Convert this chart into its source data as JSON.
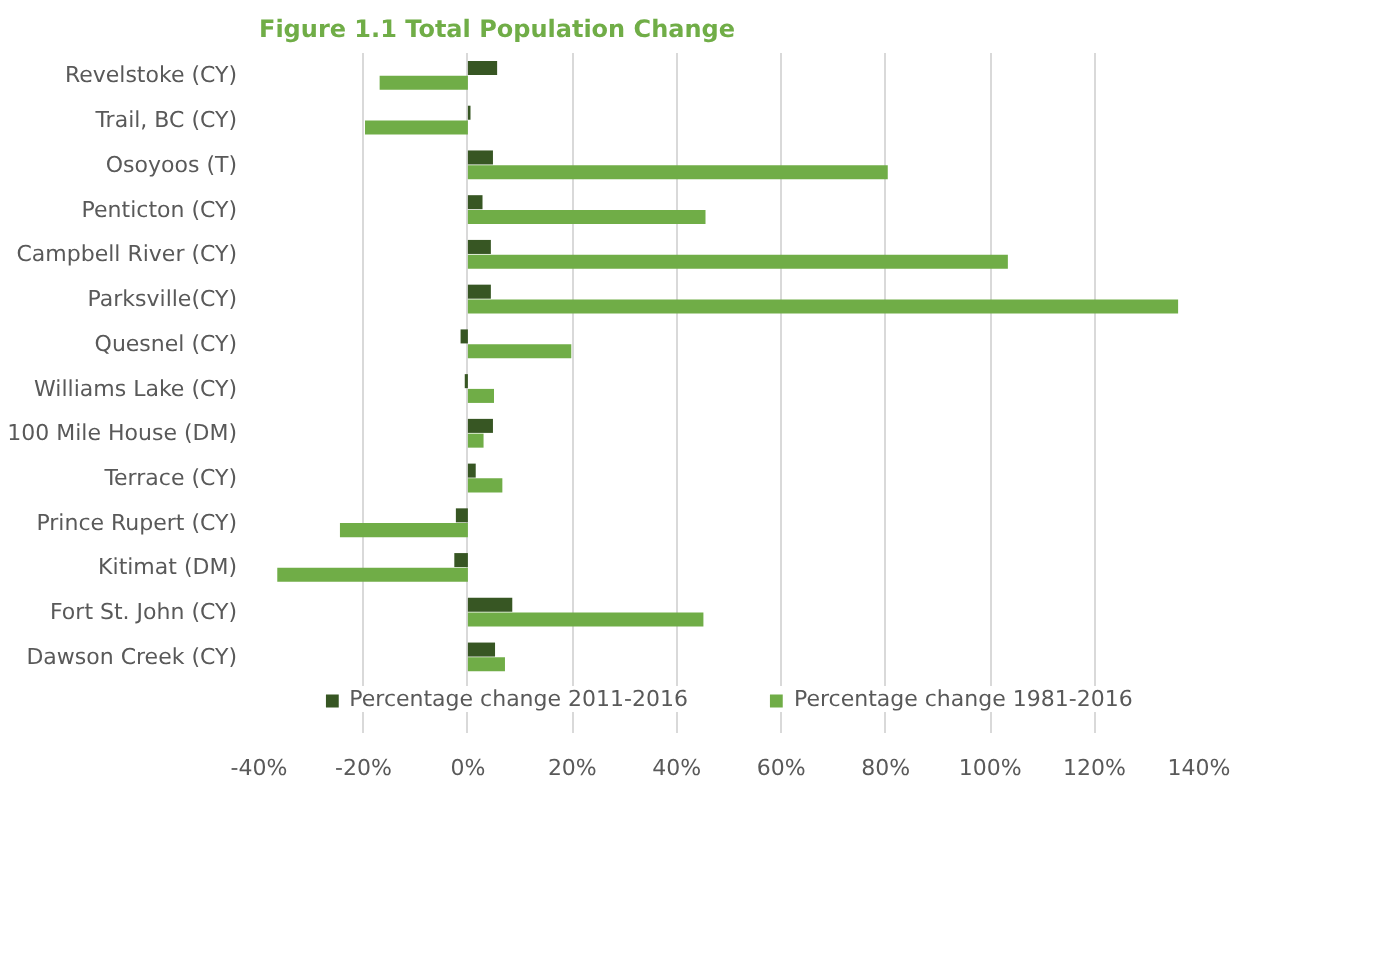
{
  "chart_data": {
    "type": "bar",
    "orientation": "horizontal",
    "title": "Figure 1.1 Total Population Change",
    "categories": [
      "Revelstoke (CY)",
      "Trail, BC (CY)",
      "Osoyoos (T)",
      "Penticton (CY)",
      "Campbell River (CY)",
      "Parksville(CY)",
      "Quesnel (CY)",
      "Williams Lake (CY)",
      "100 Mile House (DM)",
      "Terrace (CY)",
      "Prince Rupert (CY)",
      "Kitimat (DM)",
      "Fort St. John (CY)",
      "Dawson Creek (CY)"
    ],
    "series": [
      {
        "name": "Percentage change 2011-2016",
        "color": "#375623",
        "values": [
          5.6,
          0.5,
          4.8,
          2.8,
          4.4,
          4.4,
          -1.4,
          -0.6,
          4.8,
          1.5,
          -2.3,
          -2.6,
          8.5,
          5.2
        ]
      },
      {
        "name": "Percentage change 1981-2016",
        "color": "#70ad47",
        "values": [
          -16.9,
          -19.7,
          80.4,
          45.5,
          103.4,
          136,
          19.8,
          5.0,
          3.0,
          6.6,
          -24.5,
          -36.5,
          45.1,
          7.1
        ]
      }
    ],
    "xlim": [
      -40,
      140
    ],
    "xticks": [
      {
        "value": -40,
        "label": "-40%"
      },
      {
        "value": -20,
        "label": "-20%"
      },
      {
        "value": 0,
        "label": "0%"
      },
      {
        "value": 20,
        "label": "20%"
      },
      {
        "value": 40,
        "label": "40%"
      },
      {
        "value": 60,
        "label": "60%"
      },
      {
        "value": 80,
        "label": "80%"
      },
      {
        "value": 100,
        "label": "100%"
      },
      {
        "value": 120,
        "label": "120%"
      },
      {
        "value": 140,
        "label": "140%"
      }
    ],
    "grid": "x",
    "legend": "bottom"
  }
}
